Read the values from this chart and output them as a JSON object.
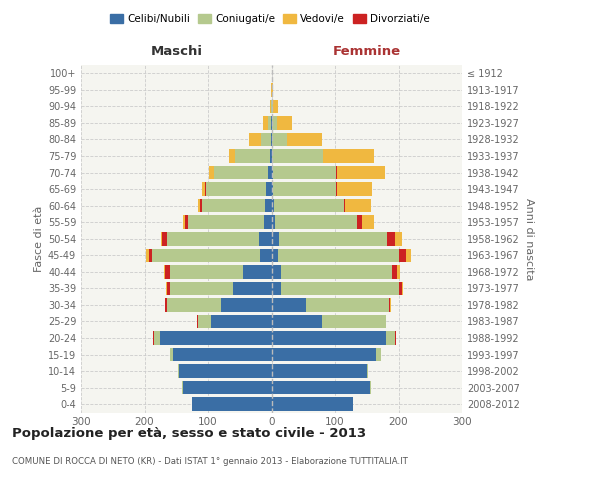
{
  "age_groups": [
    "0-4",
    "5-9",
    "10-14",
    "15-19",
    "20-24",
    "25-29",
    "30-34",
    "35-39",
    "40-44",
    "45-49",
    "50-54",
    "55-59",
    "60-64",
    "65-69",
    "70-74",
    "75-79",
    "80-84",
    "85-89",
    "90-94",
    "95-99",
    "100+"
  ],
  "birth_years": [
    "2008-2012",
    "2003-2007",
    "1998-2002",
    "1993-1997",
    "1988-1992",
    "1983-1987",
    "1978-1982",
    "1973-1977",
    "1968-1972",
    "1963-1967",
    "1958-1962",
    "1953-1957",
    "1948-1952",
    "1943-1947",
    "1938-1942",
    "1933-1937",
    "1928-1932",
    "1923-1927",
    "1918-1922",
    "1913-1917",
    "≤ 1912"
  ],
  "colors": {
    "celibe": "#3a6ea5",
    "coniugato": "#b5c98e",
    "vedovo": "#f0b840",
    "divorziato": "#cc2222"
  },
  "maschi": {
    "celibe": [
      125,
      140,
      145,
      155,
      175,
      95,
      80,
      60,
      45,
      18,
      20,
      12,
      10,
      8,
      5,
      2,
      1,
      1,
      0,
      0,
      0
    ],
    "coniugato": [
      0,
      1,
      2,
      5,
      10,
      20,
      85,
      100,
      115,
      170,
      145,
      120,
      100,
      95,
      85,
      55,
      15,
      5,
      1,
      0,
      0
    ],
    "vedovo": [
      0,
      0,
      0,
      0,
      0,
      0,
      1,
      1,
      1,
      5,
      1,
      2,
      3,
      5,
      8,
      10,
      20,
      8,
      2,
      1,
      0
    ],
    "divorziato": [
      0,
      0,
      0,
      0,
      1,
      2,
      2,
      5,
      8,
      5,
      8,
      5,
      2,
      1,
      1,
      0,
      0,
      0,
      0,
      0,
      0
    ]
  },
  "femmine": {
    "nubile": [
      128,
      155,
      150,
      165,
      180,
      80,
      55,
      15,
      15,
      10,
      12,
      5,
      4,
      2,
      2,
      1,
      0,
      0,
      0,
      0,
      0
    ],
    "coniugata": [
      0,
      1,
      2,
      8,
      15,
      100,
      130,
      185,
      175,
      190,
      170,
      130,
      110,
      100,
      100,
      80,
      25,
      8,
      2,
      0,
      0
    ],
    "vedova": [
      0,
      0,
      0,
      0,
      0,
      0,
      1,
      2,
      4,
      8,
      12,
      18,
      40,
      55,
      75,
      80,
      55,
      25,
      8,
      3,
      1
    ],
    "divorziata": [
      0,
      0,
      0,
      0,
      1,
      1,
      2,
      5,
      8,
      12,
      12,
      8,
      2,
      1,
      1,
      0,
      0,
      0,
      0,
      0,
      0
    ]
  },
  "xlim": 300,
  "title": "Popolazione per età, sesso e stato civile - 2013",
  "subtitle": "COMUNE DI ROCCA DI NETO (KR) - Dati ISTAT 1° gennaio 2013 - Elaborazione TUTTITALIA.IT",
  "ylabel_left": "Fasce di età",
  "ylabel_right": "Anni di nascita",
  "xlabel_left": "Maschi",
  "xlabel_right": "Femmine",
  "femmine_color": "#aa3333",
  "maschi_color": "#333333",
  "bg_color": "#f5f5f0",
  "grid_color": "#cccccc",
  "text_color": "#666666"
}
